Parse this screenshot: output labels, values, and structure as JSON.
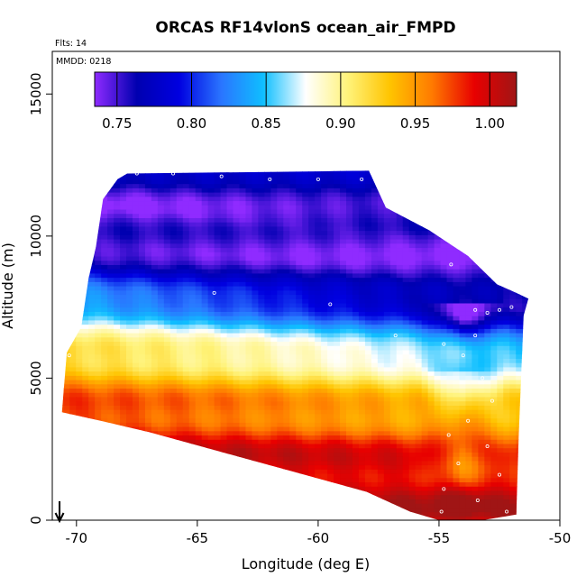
{
  "title": "ORCAS RF14vlonS ocean_air_FMPD",
  "flights_label": "Flts: 14",
  "date_label": "MMDD: 0218",
  "chart_data": {
    "type": "heatmap",
    "title": "ORCAS RF14vlonS ocean_air_FMPD",
    "xlabel": "Longitude (deg E)",
    "ylabel": "Altitude (m)",
    "xlim": [
      -71,
      -50
    ],
    "ylim": [
      0,
      16500
    ],
    "x_ticks": [
      -70,
      -65,
      -60,
      -55,
      -50
    ],
    "y_ticks": [
      0,
      5000,
      10000,
      15000
    ],
    "x_tick_labels": [
      "-70",
      "-65",
      "-60",
      "-55",
      "-50"
    ],
    "y_tick_labels": [
      "0",
      "5000",
      "10000",
      "15000"
    ],
    "colorbar": {
      "range": [
        0.735,
        1.018
      ],
      "ticks": [
        0.75,
        0.8,
        0.85,
        0.9,
        0.95,
        1.0
      ],
      "tick_labels": [
        "0.75",
        "0.80",
        "0.85",
        "0.90",
        "0.95",
        "1.00"
      ],
      "colors": [
        "#8f2bff",
        "#0000b0",
        "#0000e0",
        "#2a75ff",
        "#0fbfff",
        "#ffffff",
        "#fff37a",
        "#ffc400",
        "#ff7a00",
        "#e80000",
        "#a01515"
      ]
    },
    "field_outline_lon_alt": [
      [
        -70.6,
        3800
      ],
      [
        -70.4,
        5900
      ],
      [
        -69.8,
        6800
      ],
      [
        -69.5,
        8500
      ],
      [
        -69.2,
        9600
      ],
      [
        -68.9,
        11300
      ],
      [
        -68.3,
        12000
      ],
      [
        -67.9,
        12200
      ],
      [
        -57.9,
        12300
      ],
      [
        -57.2,
        11000
      ],
      [
        -55.4,
        10200
      ],
      [
        -53.8,
        9300
      ],
      [
        -52.6,
        8300
      ],
      [
        -51.8,
        8000
      ],
      [
        -51.3,
        7800
      ],
      [
        -51.5,
        7200
      ],
      [
        -51.7,
        3000
      ],
      [
        -51.8,
        200
      ],
      [
        -53.2,
        0
      ],
      [
        -55.0,
        0
      ],
      [
        -56.2,
        300
      ],
      [
        -58.0,
        1000
      ],
      [
        -61.0,
        1700
      ],
      [
        -64.0,
        2400
      ],
      [
        -67.0,
        3100
      ],
      [
        -69.0,
        3500
      ],
      [
        -70.6,
        3800
      ]
    ],
    "flight_points": [
      {
        "lon": -67.5,
        "alt": 12200
      },
      {
        "lon": -66.0,
        "alt": 12200
      },
      {
        "lon": -64.0,
        "alt": 12100
      },
      {
        "lon": -62.0,
        "alt": 12000
      },
      {
        "lon": -60.0,
        "alt": 12000
      },
      {
        "lon": -58.2,
        "alt": 12000
      },
      {
        "lon": -56.5,
        "alt": 11000
      },
      {
        "lon": -55.2,
        "alt": 10200
      },
      {
        "lon": -54.5,
        "alt": 9000
      },
      {
        "lon": -53.5,
        "alt": 7400
      },
      {
        "lon": -53.0,
        "alt": 7300
      },
      {
        "lon": -52.5,
        "alt": 7400
      },
      {
        "lon": -52.0,
        "alt": 7500
      },
      {
        "lon": -53.5,
        "alt": 6500
      },
      {
        "lon": -54.0,
        "alt": 5800
      },
      {
        "lon": -53.2,
        "alt": 5000
      },
      {
        "lon": -52.8,
        "alt": 4200
      },
      {
        "lon": -53.8,
        "alt": 3500
      },
      {
        "lon": -54.6,
        "alt": 3000
      },
      {
        "lon": -53.0,
        "alt": 2600
      },
      {
        "lon": -54.2,
        "alt": 2000
      },
      {
        "lon": -52.5,
        "alt": 1600
      },
      {
        "lon": -54.8,
        "alt": 1100
      },
      {
        "lon": -53.4,
        "alt": 700
      },
      {
        "lon": -54.9,
        "alt": 300
      },
      {
        "lon": -52.2,
        "alt": 300
      },
      {
        "lon": -59.5,
        "alt": 7600
      },
      {
        "lon": -64.3,
        "alt": 8000
      },
      {
        "lon": -70.3,
        "alt": 5800
      },
      {
        "lon": -70.6,
        "alt": 4900
      },
      {
        "lon": -54.8,
        "alt": 6200
      },
      {
        "lon": -56.8,
        "alt": 6500
      }
    ],
    "arrow_marker_lon": -70.7
  }
}
